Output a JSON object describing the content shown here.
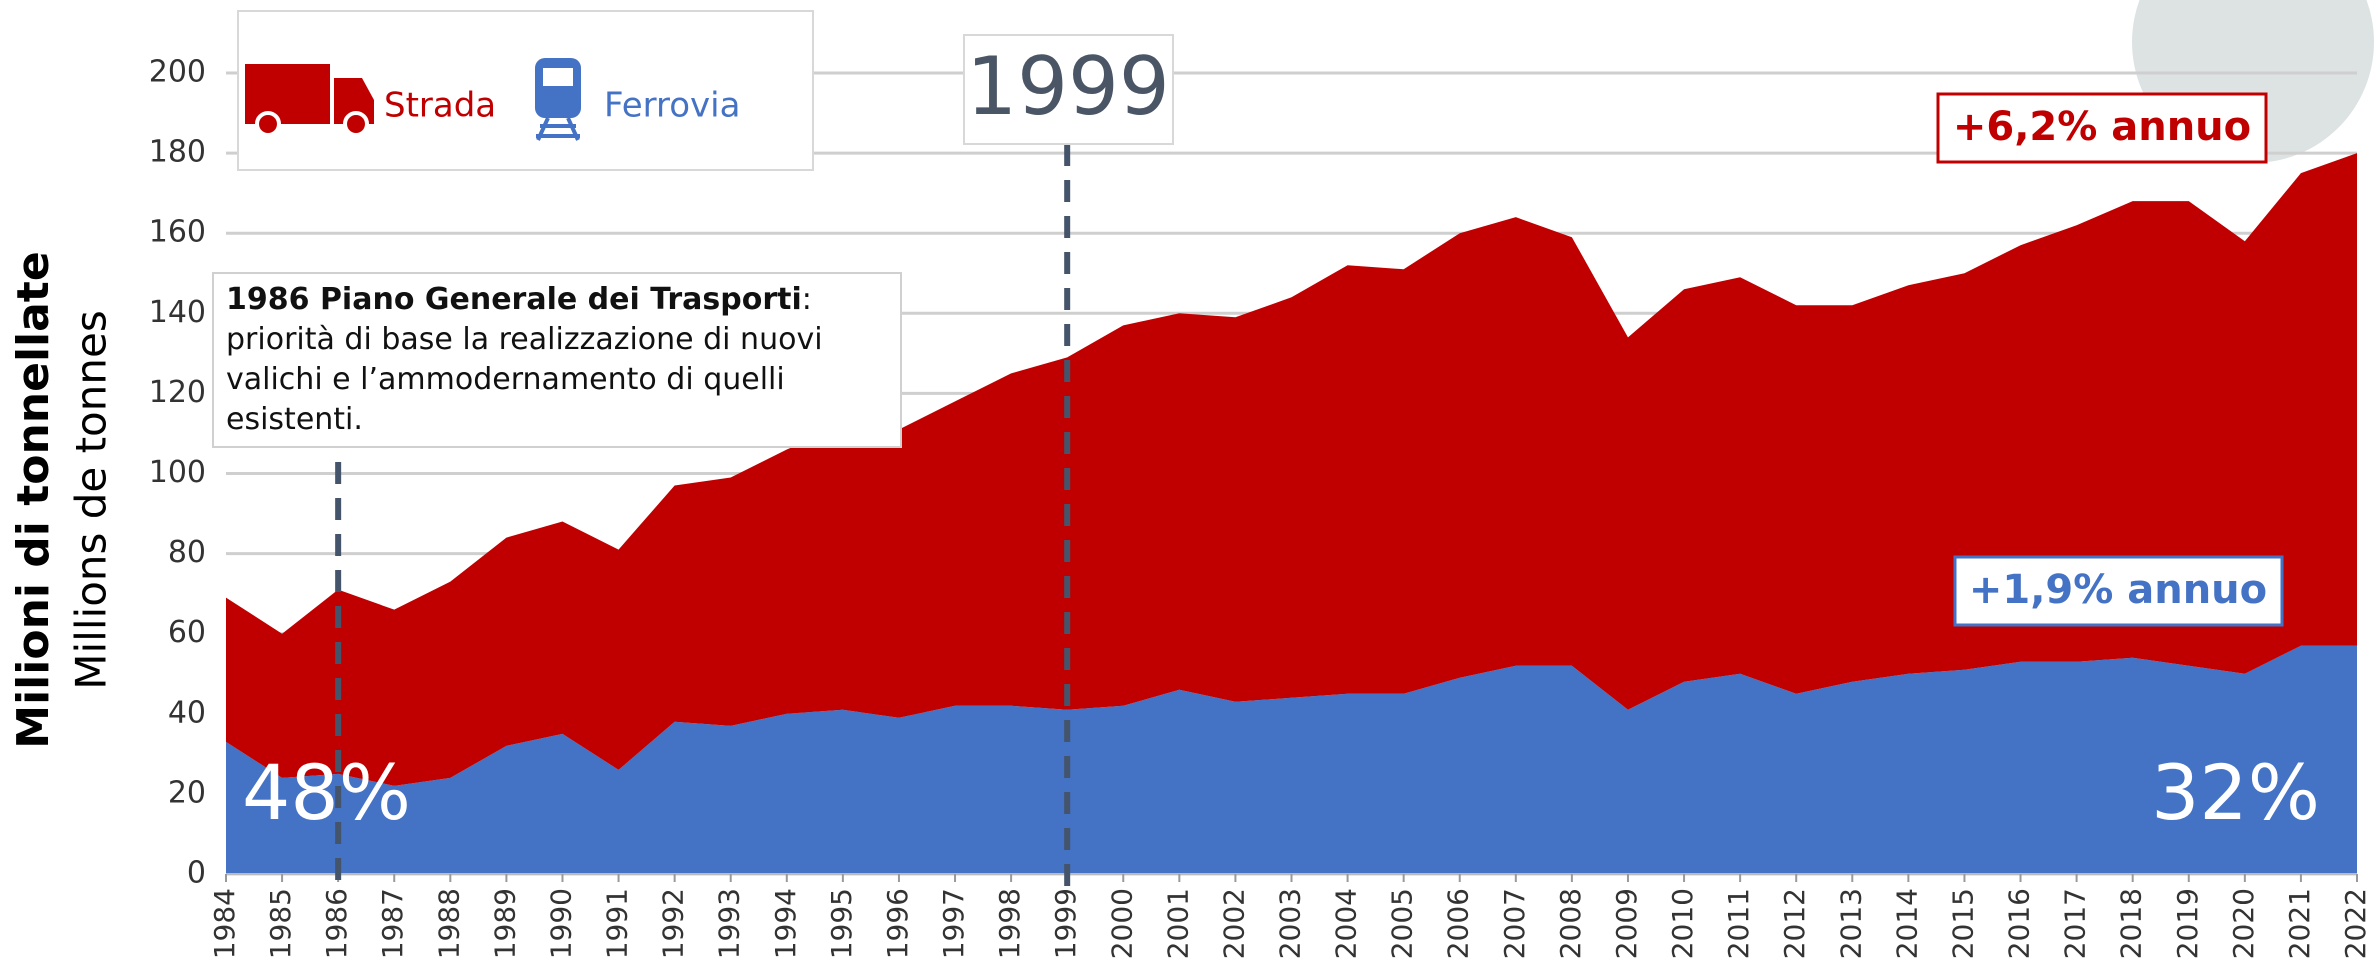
{
  "chart_data": {
    "type": "stacked_area",
    "y_axis_title": "Milioni di tonnellate",
    "y_axis_subtitle": "Millions de tonnes",
    "categories": [
      "1984",
      "1985",
      "1986",
      "1987",
      "1988",
      "1989",
      "1990",
      "1991",
      "1992",
      "1993",
      "1994",
      "1995",
      "1996",
      "1997",
      "1998",
      "1999",
      "2000",
      "2001",
      "2002",
      "2003",
      "2004",
      "2005",
      "2006",
      "2007",
      "2008",
      "2009",
      "2010",
      "2011",
      "2012",
      "2013",
      "2014",
      "2015",
      "2016",
      "2017",
      "2018",
      "2019",
      "2020",
      "2021",
      "2022"
    ],
    "series": [
      {
        "name": "Strada",
        "color": "#c00000",
        "values": [
          36,
          36,
          46,
          44,
          49,
          52,
          53,
          55,
          59,
          62,
          66,
          71,
          72,
          76,
          83,
          88,
          95,
          94,
          96,
          100,
          107,
          106,
          111,
          112,
          107,
          93,
          98,
          99,
          97,
          94,
          97,
          99,
          104,
          109,
          114,
          116,
          108,
          118,
          123
        ]
      },
      {
        "name": "Ferrovia",
        "color": "#4472c4",
        "values": [
          33,
          24,
          25,
          22,
          24,
          32,
          35,
          26,
          38,
          37,
          40,
          41,
          39,
          42,
          42,
          41,
          42,
          46,
          43,
          44,
          45,
          45,
          49,
          52,
          52,
          41,
          48,
          50,
          45,
          48,
          50,
          51,
          53,
          53,
          54,
          52,
          50,
          57,
          57
        ]
      }
    ],
    "ylim": [
      0,
      200
    ],
    "yticks": [
      0,
      20,
      40,
      60,
      80,
      100,
      120,
      140,
      160,
      180,
      200
    ],
    "grid": true,
    "annotations": {
      "year_marker": "1999",
      "note_bold": "1986 Piano Generale dei Trasporti",
      "note_text": ": priorità di base la realizzazione di nuovi valichi e l’ammodernamento di quelli esistenti.",
      "road_growth": "+6,2% annuo",
      "rail_growth": "+1,9% annuo",
      "rail_share_start": "48%",
      "rail_share_end": "32%"
    }
  }
}
